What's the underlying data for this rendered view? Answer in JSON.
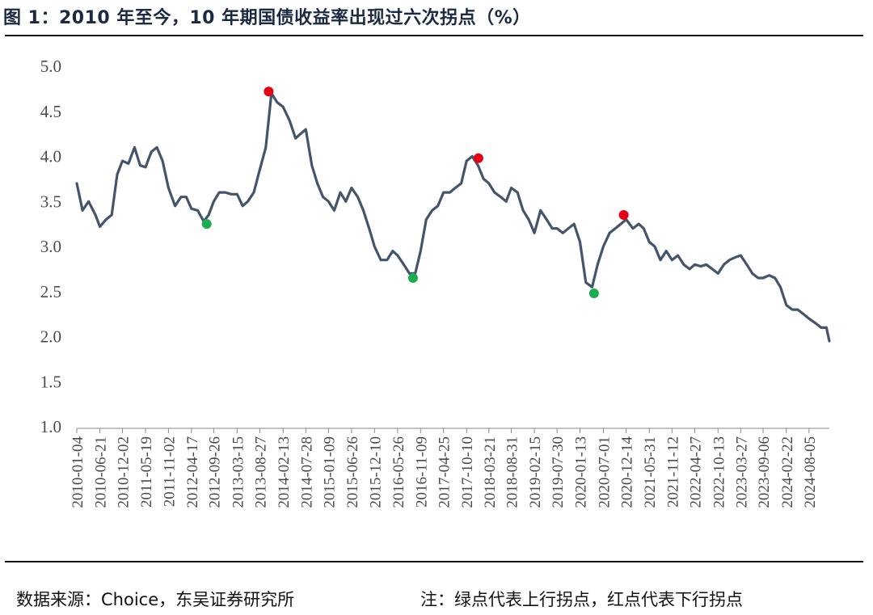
{
  "figure": {
    "title": "图 1：2010 年至今，10 年期国债收益率出现过六次拐点（%）",
    "source": "数据来源：Choice，东吴证券研究所",
    "note": "注：绿点代表上行拐点，红点代表下行拐点"
  },
  "chart_data": {
    "type": "line",
    "title": "",
    "xlabel": "",
    "ylabel": "",
    "ylim": [
      1.0,
      5.0
    ],
    "yticks": [
      "5.0",
      "4.5",
      "4.0",
      "3.5",
      "3.0",
      "2.5",
      "2.0",
      "1.5",
      "1.0"
    ],
    "xticks": [
      "2010-01-04",
      "2010-06-21",
      "2010-12-02",
      "2011-05-19",
      "2011-11-02",
      "2012-04-17",
      "2012-09-26",
      "2013-03-15",
      "2013-08-27",
      "2014-02-13",
      "2014-07-28",
      "2015-01-09",
      "2015-06-26",
      "2015-12-10",
      "2016-05-26",
      "2016-11-09",
      "2017-04-25",
      "2017-10-10",
      "2018-03-21",
      "2018-08-31",
      "2019-02-15",
      "2019-07-30",
      "2020-01-13",
      "2020-07-01",
      "2020-12-14",
      "2021-05-31",
      "2021-11-12",
      "2022-04-27",
      "2022-10-13",
      "2023-03-27",
      "2023-09-06",
      "2024-02-22",
      "2024-08-05"
    ],
    "line_color": "#44546a",
    "grid": false,
    "series": [
      {
        "x": [
          "2010-01-04",
          "2010-02-15",
          "2010-03-31",
          "2010-05-20",
          "2010-06-21",
          "2010-08-05",
          "2010-09-15",
          "2010-10-25",
          "2010-12-02",
          "2011-01-15",
          "2011-02-28",
          "2011-04-10",
          "2011-05-19",
          "2011-06-30",
          "2011-08-10",
          "2011-09-20",
          "2011-11-02",
          "2011-12-20",
          "2012-02-01",
          "2012-03-10",
          "2012-04-17",
          "2012-06-01",
          "2012-07-15",
          "2012-08-20",
          "2012-09-26",
          "2012-11-05",
          "2012-12-20",
          "2013-02-01",
          "2013-03-15",
          "2013-04-25",
          "2013-06-01",
          "2013-07-15",
          "2013-08-27",
          "2013-10-10",
          "2013-11-20",
          "2014-01-01",
          "2014-02-13",
          "2014-03-31",
          "2014-05-15",
          "2014-06-20",
          "2014-07-28",
          "2014-09-10",
          "2014-10-20",
          "2014-11-30",
          "2015-01-09",
          "2015-02-20",
          "2015-04-05",
          "2015-05-15",
          "2015-06-26",
          "2015-08-10",
          "2015-09-20",
          "2015-11-01",
          "2015-12-10",
          "2016-01-25",
          "2016-03-10",
          "2016-04-20",
          "2016-05-26",
          "2016-07-10",
          "2016-08-20",
          "2016-10-01",
          "2016-11-09",
          "2016-12-20",
          "2017-02-01",
          "2017-03-15",
          "2017-04-25",
          "2017-06-10",
          "2017-07-20",
          "2017-09-01",
          "2017-10-10",
          "2017-11-20",
          "2018-01-01",
          "2018-02-10",
          "2018-03-21",
          "2018-05-01",
          "2018-06-15",
          "2018-07-25",
          "2018-08-31",
          "2018-10-15",
          "2018-11-25",
          "2019-01-05",
          "2019-02-15",
          "2019-04-01",
          "2019-05-15",
          "2019-06-25",
          "2019-07-30",
          "2019-09-10",
          "2019-10-20",
          "2019-12-01",
          "2020-01-13",
          "2020-02-25",
          "2020-04-10",
          "2020-05-20",
          "2020-07-01",
          "2020-08-15",
          "2020-09-25",
          "2020-11-05",
          "2020-12-14",
          "2021-02-01",
          "2021-03-15",
          "2021-04-20",
          "2021-05-31",
          "2021-07-10",
          "2021-08-20",
          "2021-10-01",
          "2021-11-12",
          "2021-12-25",
          "2022-02-05",
          "2022-03-20",
          "2022-04-27",
          "2022-06-10",
          "2022-07-20",
          "2022-09-01",
          "2022-10-13",
          "2022-11-25",
          "2023-01-05",
          "2023-02-15",
          "2023-03-27",
          "2023-05-10",
          "2023-06-20",
          "2023-08-01",
          "2023-09-06",
          "2023-10-20",
          "2023-12-01",
          "2024-01-10",
          "2024-02-22",
          "2024-04-05",
          "2024-05-15",
          "2024-06-25",
          "2024-08-05",
          "2024-09-20",
          "2024-11-01",
          "2024-12-10",
          "2024-12-31"
        ],
        "values": [
          3.7,
          3.4,
          3.5,
          3.35,
          3.22,
          3.3,
          3.35,
          3.8,
          3.95,
          3.92,
          4.1,
          3.9,
          3.88,
          4.05,
          4.1,
          3.95,
          3.65,
          3.45,
          3.55,
          3.55,
          3.42,
          3.4,
          3.28,
          3.35,
          3.5,
          3.6,
          3.6,
          3.58,
          3.58,
          3.45,
          3.5,
          3.6,
          3.85,
          4.1,
          4.7,
          4.6,
          4.55,
          4.4,
          4.2,
          4.25,
          4.3,
          3.9,
          3.7,
          3.55,
          3.5,
          3.4,
          3.6,
          3.5,
          3.65,
          3.55,
          3.4,
          3.2,
          3.0,
          2.85,
          2.85,
          2.95,
          2.9,
          2.8,
          2.7,
          2.7,
          2.95,
          3.3,
          3.4,
          3.45,
          3.6,
          3.6,
          3.65,
          3.7,
          3.95,
          4.0,
          3.9,
          3.75,
          3.7,
          3.6,
          3.55,
          3.5,
          3.65,
          3.6,
          3.4,
          3.3,
          3.15,
          3.4,
          3.3,
          3.2,
          3.2,
          3.15,
          3.2,
          3.25,
          3.05,
          2.6,
          2.55,
          2.8,
          3.0,
          3.15,
          3.2,
          3.25,
          3.3,
          3.2,
          3.25,
          3.2,
          3.05,
          3.0,
          2.85,
          2.95,
          2.85,
          2.9,
          2.8,
          2.75,
          2.8,
          2.78,
          2.8,
          2.75,
          2.7,
          2.8,
          2.85,
          2.88,
          2.9,
          2.8,
          2.7,
          2.65,
          2.65,
          2.68,
          2.65,
          2.55,
          2.35,
          2.3,
          2.3,
          2.25,
          2.2,
          2.15,
          2.1,
          2.1,
          1.95
        ]
      }
    ],
    "markers": [
      {
        "x": "2012-08-06",
        "y": 3.25,
        "type": "上行拐点",
        "color": "#1aae4e"
      },
      {
        "x": "2013-10-31",
        "y": 4.72,
        "type": "下行拐点",
        "color": "#e60012"
      },
      {
        "x": "2016-09-15",
        "y": 2.65,
        "type": "上行拐点",
        "color": "#1aae4e"
      },
      {
        "x": "2018-01-04",
        "y": 3.98,
        "type": "下行拐点",
        "color": "#e60012"
      },
      {
        "x": "2020-04-24",
        "y": 2.48,
        "type": "上行拐点",
        "color": "#1aae4e"
      },
      {
        "x": "2020-11-26",
        "y": 3.35,
        "type": "下行拐点",
        "color": "#e60012"
      }
    ]
  }
}
